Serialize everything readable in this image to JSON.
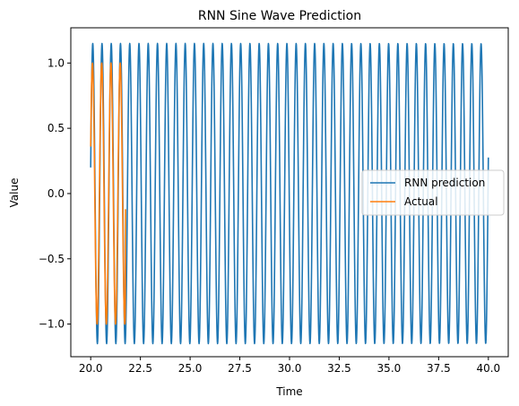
{
  "chart_data": {
    "type": "line",
    "title": "RNN Sine Wave Prediction",
    "xlabel": "Time",
    "ylabel": "Value",
    "xlim": [
      19.0,
      41.0
    ],
    "ylim": [
      -1.25,
      1.27
    ],
    "xticks": [
      20.0,
      22.5,
      25.0,
      27.5,
      30.0,
      32.5,
      35.0,
      37.5,
      40.0
    ],
    "xtick_labels": [
      "20.0",
      "22.5",
      "25.0",
      "27.5",
      "30.0",
      "32.5",
      "35.0",
      "37.5",
      "40.0"
    ],
    "yticks": [
      -1.0,
      -0.5,
      0.0,
      0.5,
      1.0
    ],
    "ytick_labels": [
      "−1.0",
      "−0.5",
      "0.0",
      "0.5",
      "1.0"
    ],
    "grid": false,
    "legend_position": "center-right",
    "series": [
      {
        "name": "RNN prediction",
        "color": "#1f77b4",
        "x_range": [
          20.0,
          40.0
        ],
        "amplitude": 1.15,
        "period": 0.465,
        "start_value": 0.2
      },
      {
        "name": "Actual",
        "color": "#ff7f0e",
        "x_range": [
          20.0,
          21.75
        ],
        "amplitude": 1.0,
        "period": 0.465,
        "start_value": 0.36,
        "end_value": -0.12
      }
    ]
  }
}
